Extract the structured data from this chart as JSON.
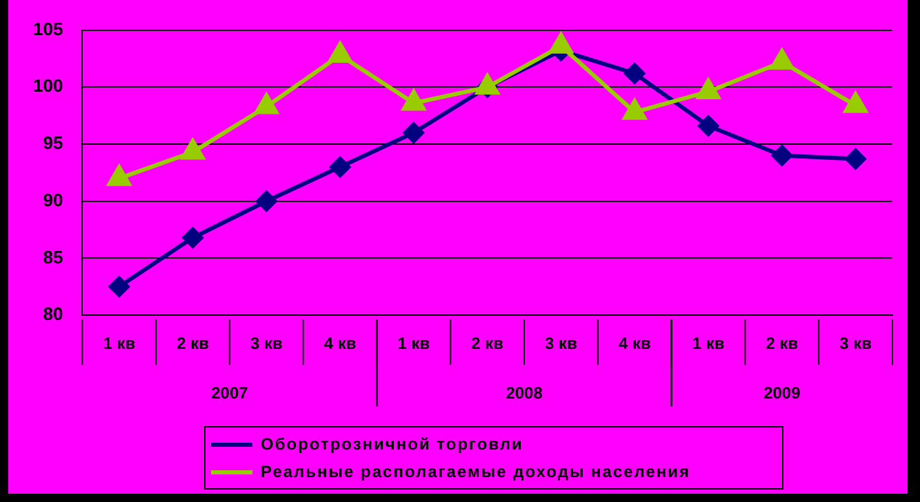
{
  "chart_data": {
    "type": "line",
    "categories": [
      "1 кв",
      "2 кв",
      "3 кв",
      "4 кв",
      "1 кв",
      "2 кв",
      "3 кв",
      "4 кв",
      "1 кв",
      "2 кв",
      "3 кв"
    ],
    "series": [
      {
        "name": "Оборотрозничной торговли",
        "color": "#000080",
        "marker": "diamond",
        "values": [
          82.5,
          86.8,
          90,
          93,
          96,
          100,
          103.2,
          101.2,
          96.6,
          94,
          93.7
        ]
      },
      {
        "name": "Реальные располагаемые доходы населения",
        "color": "#99cc00",
        "marker": "triangle",
        "values": [
          92,
          94.3,
          98.3,
          102.8,
          98.6,
          100,
          103.6,
          97.8,
          99.6,
          102.2,
          98.4
        ]
      }
    ],
    "ylim": [
      80,
      105
    ],
    "yticks": [
      80,
      85,
      90,
      95,
      100,
      105
    ],
    "grid": "y",
    "legend": "bottom",
    "line_style": "solid",
    "annotations": [
      "2007",
      "2008",
      "2009"
    ]
  }
}
